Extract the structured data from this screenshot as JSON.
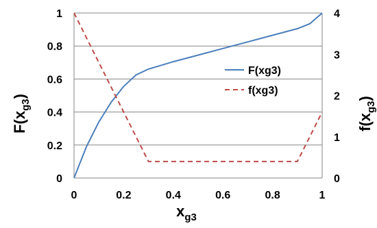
{
  "chart_data": {
    "type": "line",
    "x_ticks": [
      "0",
      "0.2",
      "0.4",
      "0.6",
      "0.8",
      "1"
    ],
    "y_left_ticks": [
      "0",
      "0.2",
      "0.4",
      "0.6",
      "0.8",
      "1"
    ],
    "y_right_ticks": [
      "0",
      "1",
      "2",
      "3",
      "4"
    ],
    "xlim": [
      0,
      1
    ],
    "ylim_left": [
      0,
      1
    ],
    "ylim_right": [
      0,
      4
    ],
    "xlabel": {
      "main": "x",
      "sub": "g3"
    },
    "ylabel_left": {
      "main": "F(x",
      "sub": "g3",
      "close": ")"
    },
    "ylabel_right": {
      "main": "f(x",
      "sub": "g3",
      "close": ")"
    },
    "grid": "horizontal",
    "legend_position": "right",
    "series": [
      {
        "name": "F(xg3)",
        "axis": "left",
        "color": "#4a7ebb",
        "style": "solid",
        "x": [
          0,
          0.05,
          0.1,
          0.15,
          0.2,
          0.25,
          0.3,
          0.4,
          0.5,
          0.6,
          0.7,
          0.8,
          0.9,
          0.95,
          1
        ],
        "y": [
          0,
          0.19,
          0.34,
          0.46,
          0.555,
          0.625,
          0.66,
          0.705,
          0.745,
          0.785,
          0.825,
          0.865,
          0.905,
          0.935,
          1
        ]
      },
      {
        "name": "f(xg3)",
        "axis": "right",
        "color": "#be4b48",
        "style": "dashed",
        "x": [
          0,
          0.3,
          0.9,
          1
        ],
        "y": [
          4,
          0.4,
          0.4,
          1.6
        ]
      }
    ]
  }
}
